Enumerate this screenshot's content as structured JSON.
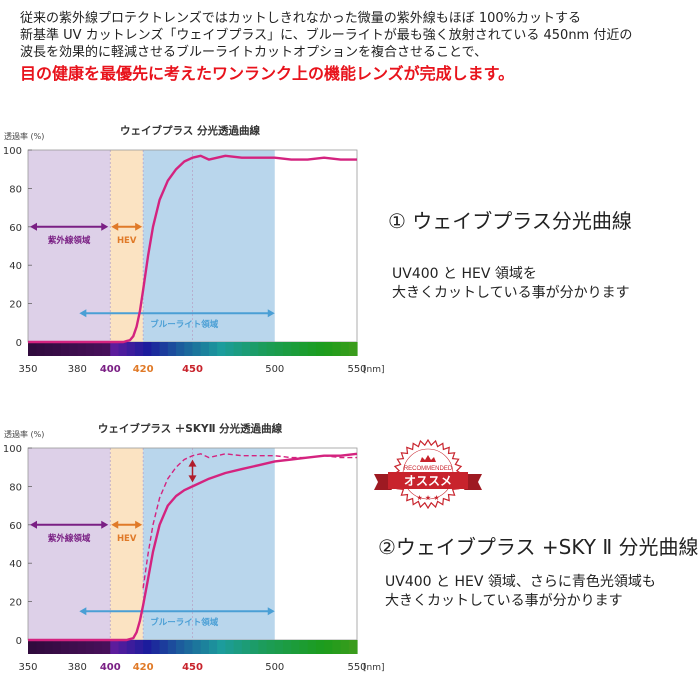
{
  "intro": {
    "line1": "従来の紫外線プロテクトレンズではカットしきれなかった微量の紫外線もほぼ 100%カットする",
    "line2": "新基準 UV カットレンズ「ウェイブプラス」に、ブルーライトが最も強く放射されている 450nm 付近の",
    "line3": "波長を効果的に軽減させるブルーライトカットオプションを複合させることで、",
    "emphasis": "目の健康を最優先に考えたワンランク上の機能レンズが完成します。"
  },
  "colors": {
    "accent_red": "#e8131c",
    "uv_band": "#ddd0e8",
    "hev_band": "#fbe3c2",
    "blue_band": "#b9d6ec",
    "curve": "#d4237f",
    "uv_arrow": "#7a1f84",
    "hev_arrow": "#e07a28",
    "blue_arrow": "#4a9fd5"
  },
  "chart_data": [
    {
      "type": "line",
      "title": "ウェイブプラス 分光透過曲線",
      "ylabel": "透過率 (%)",
      "xlabel": "[nm]",
      "xlim": [
        350,
        550
      ],
      "ylim": [
        0,
        100
      ],
      "x_ticks": [
        "350",
        "380",
        "400",
        "420",
        "450",
        "500",
        "550"
      ],
      "y_ticks": [
        "0",
        "20",
        "40",
        "60",
        "80",
        "100"
      ],
      "regions": [
        {
          "label": "紫外線領域",
          "from": 350,
          "to": 400
        },
        {
          "label": "HEV",
          "from": 400,
          "to": 420
        },
        {
          "label": "ブルーライト領域",
          "from": 420,
          "to": 500
        }
      ],
      "series": [
        {
          "x": [
            350,
            400,
            408,
            412,
            414,
            416,
            418,
            420,
            423,
            426,
            430,
            435,
            440,
            445,
            450,
            455,
            460,
            465,
            470,
            480,
            490,
            500,
            510,
            520,
            530,
            540,
            550
          ],
          "y": [
            0,
            0,
            0,
            1,
            3,
            8,
            16,
            27,
            45,
            60,
            74,
            84,
            90,
            94,
            96,
            97,
            95,
            96,
            97,
            96,
            96,
            96,
            95,
            95,
            96,
            95,
            95
          ]
        }
      ]
    },
    {
      "type": "line",
      "title": "ウェイブプラス ＋SKYⅡ 分光透過曲線",
      "ylabel": "透過率 (%)",
      "xlabel": "[nm]",
      "xlim": [
        350,
        550
      ],
      "ylim": [
        0,
        100
      ],
      "x_ticks": [
        "350",
        "380",
        "400",
        "420",
        "450",
        "500",
        "550"
      ],
      "y_ticks": [
        "0",
        "20",
        "40",
        "60",
        "80",
        "100"
      ],
      "regions": [
        {
          "label": "紫外線領域",
          "from": 350,
          "to": 400
        },
        {
          "label": "HEV",
          "from": 400,
          "to": 420
        },
        {
          "label": "ブルーライト領域",
          "from": 420,
          "to": 500
        }
      ],
      "series": [
        {
          "x": [
            350,
            400,
            410,
            414,
            416,
            418,
            420,
            423,
            426,
            430,
            435,
            440,
            445,
            450,
            460,
            470,
            480,
            490,
            500,
            510,
            520,
            530,
            540,
            550
          ],
          "y": [
            0,
            0,
            0,
            1,
            4,
            10,
            18,
            32,
            46,
            60,
            70,
            75,
            78,
            80,
            84,
            87,
            89,
            91,
            93,
            94,
            95,
            96,
            96,
            97
          ]
        },
        {
          "x": [
            420,
            423,
            426,
            430,
            435,
            440,
            445,
            450,
            455,
            460,
            465,
            470,
            480,
            490,
            500,
            510,
            520,
            530,
            540,
            550
          ],
          "y": [
            27,
            45,
            60,
            74,
            84,
            90,
            94,
            96,
            97,
            95,
            96,
            97,
            96,
            96,
            96,
            95,
            95,
            96,
            95,
            95
          ],
          "dashed": true
        }
      ]
    }
  ],
  "descriptions": [
    {
      "title": "① ウェイブプラス分光曲線",
      "line1": "UV400 と HEV 領域を",
      "line2": "大きくカットしている事が分かります"
    },
    {
      "title": "②ウェイブプラス +SKY Ⅱ 分光曲線",
      "line1": "UV400 と HEV 領域、さらに青色光領域も",
      "line2": "大きくカットしている事が分かります"
    }
  ],
  "badge": {
    "recommended": "RECOMMENDED",
    "label": "オススメ"
  }
}
